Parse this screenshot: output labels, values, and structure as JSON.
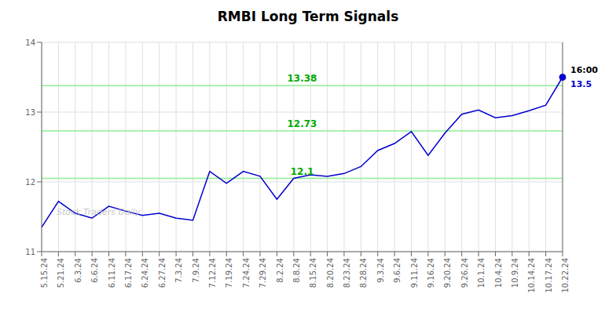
{
  "chart_data": {
    "type": "line",
    "title": "RMBI Long Term Signals",
    "watermark": "Stock Traders Daily",
    "categories": [
      "5.15.24",
      "5.21.24",
      "6.3.24",
      "6.6.24",
      "6.11.24",
      "6.17.24",
      "6.24.24",
      "6.27.24",
      "7.3.24",
      "7.9.24",
      "7.12.24",
      "7.19.24",
      "7.24.24",
      "7.29.24",
      "8.2.24",
      "8.8.24",
      "8.15.24",
      "8.20.24",
      "8.23.24",
      "8.28.24",
      "9.3.24",
      "9.6.24",
      "9.11.24",
      "9.16.24",
      "9.20.24",
      "9.26.24",
      "10.1.24",
      "10.4.24",
      "10.9.24",
      "10.14.24",
      "10.17.24",
      "10.22.24"
    ],
    "values": [
      11.35,
      11.72,
      11.55,
      11.48,
      11.65,
      11.58,
      11.52,
      11.55,
      11.48,
      11.45,
      12.15,
      11.98,
      12.15,
      12.08,
      11.75,
      12.05,
      12.1,
      12.08,
      12.12,
      12.22,
      12.45,
      12.55,
      12.72,
      12.38,
      12.7,
      12.97,
      13.03,
      12.92,
      12.95,
      13.02,
      13.1,
      13.5
    ],
    "color": "#0000cd",
    "hlines": [
      {
        "value": 13.38,
        "label": "13.38"
      },
      {
        "value": 12.73,
        "label": "12.73"
      },
      {
        "value": 12.05,
        "label": "12.1"
      }
    ],
    "hline_color": "#90ee90",
    "hline_label_color": "#00aa00",
    "vline_color": "#808080",
    "last_label": {
      "text": "16:00",
      "color": "#000000"
    },
    "last_value_label": {
      "text": "13.5",
      "value": 13.5,
      "color": "#0000cd"
    },
    "ylim": [
      11.0,
      14.0
    ],
    "yticks": [
      11,
      12,
      13,
      14
    ],
    "grid": true
  }
}
